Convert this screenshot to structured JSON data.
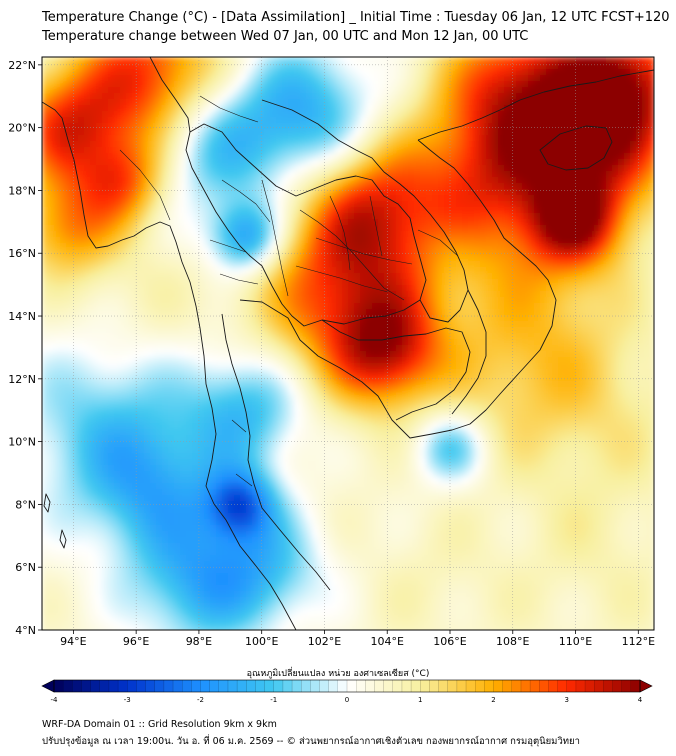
{
  "header": {
    "title_line1": "Temperature Change (°C) - [Data Assimilation] _ Initial Time : Tuesday 06 Jan, 12 UTC FCST+120",
    "title_line2": "Temperature change between Wed 07 Jan, 00 UTC and Mon 12 Jan, 00 UTC"
  },
  "map": {
    "lon_range": [
      93,
      112.5
    ],
    "lat_range": [
      4,
      22.25
    ],
    "lon_ticks": [
      94,
      96,
      98,
      100,
      102,
      104,
      106,
      108,
      110,
      112
    ],
    "lat_ticks": [
      4,
      6,
      8,
      10,
      12,
      14,
      16,
      18,
      20,
      22
    ],
    "lon_tick_labels": [
      "94°E",
      "96°E",
      "98°E",
      "100°E",
      "102°E",
      "104°E",
      "106°E",
      "108°E",
      "110°E",
      "112°E"
    ],
    "lat_tick_labels": [
      "4°N",
      "6°N",
      "8°N",
      "10°N",
      "12°N",
      "14°N",
      "16°N",
      "18°N",
      "20°N",
      "22°N"
    ],
    "field_blobs": [
      {
        "lon": 102.8,
        "lat": 14.8,
        "value": 3.0,
        "r": 2.0
      },
      {
        "lon": 104.0,
        "lat": 12.8,
        "value": 2.6,
        "r": 1.2
      },
      {
        "lon": 103.5,
        "lat": 17.5,
        "value": 2.3,
        "r": 1.4
      },
      {
        "lon": 107.0,
        "lat": 18.5,
        "value": 2.5,
        "r": 1.8
      },
      {
        "lon": 110.5,
        "lat": 19.5,
        "value": 3.2,
        "r": 1.8
      },
      {
        "lon": 111.5,
        "lat": 21.6,
        "value": 3.0,
        "r": 1.5
      },
      {
        "lon": 108.0,
        "lat": 21.5,
        "value": 2.5,
        "r": 1.5
      },
      {
        "lon": 96.5,
        "lat": 21.6,
        "value": 3.1,
        "r": 1.6
      },
      {
        "lon": 93.8,
        "lat": 20.0,
        "value": 2.8,
        "r": 1.3
      },
      {
        "lon": 95.6,
        "lat": 18.3,
        "value": 2.4,
        "r": 1.0
      },
      {
        "lon": 93.8,
        "lat": 16.8,
        "value": 2.2,
        "r": 1.1
      },
      {
        "lon": 98.5,
        "lat": 19.5,
        "value": -1.2,
        "r": 1.6
      },
      {
        "lon": 101.5,
        "lat": 20.5,
        "value": -1.3,
        "r": 1.5
      },
      {
        "lon": 99.5,
        "lat": 16.5,
        "value": -1.8,
        "r": 0.8
      },
      {
        "lon": 96.0,
        "lat": 14.5,
        "value": 0.8,
        "r": 1.5
      },
      {
        "lon": 95.0,
        "lat": 10.5,
        "value": -0.8,
        "r": 2.0
      },
      {
        "lon": 96.5,
        "lat": 8.5,
        "value": -1.0,
        "r": 1.5
      },
      {
        "lon": 99.3,
        "lat": 8.0,
        "value": -2.0,
        "r": 0.8
      },
      {
        "lon": 99.5,
        "lat": 11.0,
        "value": -1.2,
        "r": 1.3
      },
      {
        "lon": 98.0,
        "lat": 5.5,
        "value": -1.3,
        "r": 1.5
      },
      {
        "lon": 100.2,
        "lat": 6.0,
        "value": -0.8,
        "r": 1.3
      },
      {
        "lon": 103.0,
        "lat": 8.0,
        "value": 0.5,
        "r": 1.8
      },
      {
        "lon": 106.0,
        "lat": 9.8,
        "value": -1.0,
        "r": 0.8
      },
      {
        "lon": 108.5,
        "lat": 12.5,
        "value": 1.5,
        "r": 2.0
      },
      {
        "lon": 109.0,
        "lat": 16.0,
        "value": 1.2,
        "r": 1.8
      },
      {
        "lon": 111.0,
        "lat": 11.0,
        "value": 0.9,
        "r": 2.0
      },
      {
        "lon": 110.5,
        "lat": 6.5,
        "value": 0.8,
        "r": 2.0
      },
      {
        "lon": 105.5,
        "lat": 5.5,
        "value": 0.7,
        "r": 1.5
      },
      {
        "lon": 106.0,
        "lat": 16.2,
        "value": 0.2,
        "r": 0.6
      },
      {
        "lon": 110.0,
        "lat": 17.0,
        "value": 2.6,
        "r": 1.0
      }
    ]
  },
  "colorbar": {
    "title": "อุณหภูมิเปลี่ยนแปลง หน่วย องศาเซลเซียส (°C)",
    "min": -4,
    "max": 4,
    "tick_values": [
      -4,
      -3,
      -2,
      -1,
      0,
      1,
      2,
      3,
      4
    ],
    "tick_labels": [
      "-4",
      "-3",
      "-2",
      "-1",
      "0",
      "1",
      "2",
      "3",
      "4"
    ],
    "colors": [
      "#00005a",
      "#0033cc",
      "#1e90ff",
      "#40c8f0",
      "#ffffff",
      "#f8f0a0",
      "#ffb000",
      "#ff2a00",
      "#8c0000"
    ]
  },
  "footer": {
    "line1": "WRF-DA Domain 01 :: Grid Resolution 9km x 9km",
    "line2": "ปรับปรุงข้อมูล ณ เวลา 19:00น. วัน อ. ที่ 06 ม.ค. 2569 -- © ส่วนพยากรณ์อากาศเชิงตัวเลข กองพยากรณ์อากาศ กรมอุตุนิยมวิทยา"
  }
}
